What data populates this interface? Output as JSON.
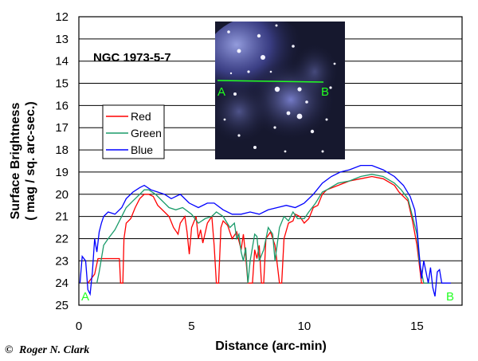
{
  "chart_data": {
    "type": "line",
    "object_label": "NGC 1973-5-7",
    "xlabel": "Distance (arc-min)",
    "ylabel_line1": "Surface Brightness",
    "ylabel_line2": "( mag / sq. arc-sec.)",
    "xlim": [
      0,
      17
    ],
    "ylim": [
      12,
      25
    ],
    "y_inverted": true,
    "xticks": [
      0,
      5,
      10,
      15
    ],
    "yticks": [
      12,
      13,
      14,
      15,
      16,
      17,
      18,
      19,
      20,
      21,
      22,
      23,
      24,
      25
    ],
    "grid": {
      "horizontal": true,
      "vertical": false
    },
    "legend_placement": "left, middle",
    "point_a_label": "A",
    "point_b_label": "B",
    "credit": "Roger N. Clark",
    "copyright_symbol": "©",
    "series": [
      {
        "name": "Red",
        "color": "#ff0000",
        "points": [
          [
            0.4,
            24.0
          ],
          [
            0.7,
            23.6
          ],
          [
            0.85,
            22.9
          ],
          [
            1.0,
            22.9
          ],
          [
            1.2,
            22.9
          ],
          [
            1.5,
            22.9
          ],
          [
            1.8,
            22.9
          ],
          [
            1.85,
            24.0
          ],
          [
            1.95,
            24.0
          ],
          [
            2.0,
            22.0
          ],
          [
            2.1,
            21.3
          ],
          [
            2.3,
            21.1
          ],
          [
            2.5,
            20.6
          ],
          [
            2.7,
            20.2
          ],
          [
            2.9,
            20.0
          ],
          [
            3.1,
            20.0
          ],
          [
            3.3,
            20.1
          ],
          [
            3.5,
            20.5
          ],
          [
            3.8,
            20.8
          ],
          [
            4.0,
            21.0
          ],
          [
            4.2,
            21.5
          ],
          [
            4.4,
            21.8
          ],
          [
            4.5,
            21.3
          ],
          [
            4.7,
            21.0
          ],
          [
            4.8,
            21.7
          ],
          [
            4.9,
            22.7
          ],
          [
            5.0,
            21.5
          ],
          [
            5.2,
            21.0
          ],
          [
            5.3,
            22.0
          ],
          [
            5.4,
            21.6
          ],
          [
            5.5,
            22.2
          ],
          [
            5.7,
            21.3
          ],
          [
            5.9,
            21.0
          ],
          [
            6.0,
            22.3
          ],
          [
            6.1,
            24.0
          ],
          [
            6.2,
            24.0
          ],
          [
            6.3,
            21.5
          ],
          [
            6.4,
            21.2
          ],
          [
            6.6,
            21.4
          ],
          [
            6.8,
            22.0
          ],
          [
            7.0,
            21.7
          ],
          [
            7.2,
            22.5
          ],
          [
            7.3,
            21.8
          ],
          [
            7.4,
            22.8
          ],
          [
            7.5,
            24.0
          ],
          [
            7.7,
            24.0
          ],
          [
            7.8,
            22.5
          ],
          [
            7.9,
            22.9
          ],
          [
            8.0,
            22.3
          ],
          [
            8.1,
            24.0
          ],
          [
            8.2,
            24.0
          ],
          [
            8.3,
            22.0
          ],
          [
            8.5,
            21.7
          ],
          [
            8.7,
            22.3
          ],
          [
            8.9,
            24.0
          ],
          [
            9.0,
            24.0
          ],
          [
            9.1,
            22.0
          ],
          [
            9.3,
            21.3
          ],
          [
            9.5,
            21.2
          ],
          [
            9.6,
            20.9
          ],
          [
            9.8,
            21.0
          ],
          [
            10.0,
            21.3
          ],
          [
            10.2,
            21.1
          ],
          [
            10.4,
            20.6
          ],
          [
            10.6,
            20.5
          ],
          [
            10.8,
            20.0
          ],
          [
            11.0,
            19.8
          ],
          [
            11.5,
            19.6
          ],
          [
            12.0,
            19.4
          ],
          [
            12.5,
            19.3
          ],
          [
            13.0,
            19.2
          ],
          [
            13.5,
            19.3
          ],
          [
            14.0,
            19.6
          ],
          [
            14.2,
            19.9
          ],
          [
            14.4,
            20.1
          ],
          [
            14.6,
            20.3
          ],
          [
            14.8,
            21.2
          ],
          [
            15.0,
            22.3
          ],
          [
            15.2,
            24.0
          ],
          [
            15.5,
            24.0
          ]
        ]
      },
      {
        "name": "Green",
        "color": "#1a9b6a",
        "points": [
          [
            0.8,
            24.0
          ],
          [
            0.9,
            23.5
          ],
          [
            1.0,
            22.9
          ],
          [
            1.1,
            22.3
          ],
          [
            1.3,
            22.0
          ],
          [
            1.6,
            21.6
          ],
          [
            1.9,
            21.0
          ],
          [
            2.1,
            20.6
          ],
          [
            2.4,
            20.3
          ],
          [
            2.7,
            20.0
          ],
          [
            2.9,
            19.8
          ],
          [
            3.1,
            19.8
          ],
          [
            3.4,
            20.0
          ],
          [
            3.7,
            20.3
          ],
          [
            4.0,
            20.6
          ],
          [
            4.3,
            20.7
          ],
          [
            4.6,
            20.6
          ],
          [
            5.0,
            20.9
          ],
          [
            5.3,
            21.3
          ],
          [
            5.6,
            21.1
          ],
          [
            5.9,
            21.0
          ],
          [
            6.1,
            20.8
          ],
          [
            6.4,
            21.0
          ],
          [
            6.7,
            21.5
          ],
          [
            6.9,
            21.3
          ],
          [
            7.0,
            22.0
          ],
          [
            7.1,
            21.8
          ],
          [
            7.2,
            22.6
          ],
          [
            7.3,
            23.0
          ],
          [
            7.4,
            22.4
          ],
          [
            7.5,
            24.0
          ],
          [
            7.6,
            23.0
          ],
          [
            7.8,
            21.8
          ],
          [
            7.9,
            21.9
          ],
          [
            8.0,
            23.0
          ],
          [
            8.2,
            22.5
          ],
          [
            8.4,
            21.5
          ],
          [
            8.6,
            21.8
          ],
          [
            8.7,
            23.0
          ],
          [
            8.9,
            21.5
          ],
          [
            9.1,
            21.0
          ],
          [
            9.3,
            21.2
          ],
          [
            9.5,
            20.8
          ],
          [
            9.7,
            21.1
          ],
          [
            10.0,
            21.1
          ],
          [
            10.2,
            20.8
          ],
          [
            10.5,
            20.4
          ],
          [
            10.8,
            19.9
          ],
          [
            11.0,
            19.8
          ],
          [
            11.5,
            19.5
          ],
          [
            12.0,
            19.4
          ],
          [
            12.5,
            19.2
          ],
          [
            13.0,
            19.1
          ],
          [
            13.5,
            19.2
          ],
          [
            14.0,
            19.5
          ],
          [
            14.3,
            19.8
          ],
          [
            14.6,
            20.2
          ],
          [
            14.8,
            21.0
          ],
          [
            15.0,
            21.8
          ],
          [
            15.1,
            23.0
          ],
          [
            15.3,
            24.0
          ],
          [
            15.6,
            24.0
          ]
        ]
      },
      {
        "name": "Blue",
        "color": "#0000ff",
        "points": [
          [
            0.05,
            24.0
          ],
          [
            0.15,
            22.8
          ],
          [
            0.3,
            23.0
          ],
          [
            0.4,
            24.3
          ],
          [
            0.5,
            24.5
          ],
          [
            0.6,
            23.5
          ],
          [
            0.7,
            22.0
          ],
          [
            0.8,
            22.6
          ],
          [
            0.9,
            21.7
          ],
          [
            1.0,
            21.3
          ],
          [
            1.1,
            21.0
          ],
          [
            1.3,
            20.8
          ],
          [
            1.6,
            20.9
          ],
          [
            1.9,
            20.6
          ],
          [
            2.1,
            20.2
          ],
          [
            2.4,
            19.9
          ],
          [
            2.7,
            19.7
          ],
          [
            2.9,
            19.6
          ],
          [
            3.2,
            19.8
          ],
          [
            3.5,
            19.9
          ],
          [
            3.8,
            20.0
          ],
          [
            4.1,
            20.2
          ],
          [
            4.5,
            20.0
          ],
          [
            4.9,
            20.4
          ],
          [
            5.3,
            20.6
          ],
          [
            5.7,
            20.4
          ],
          [
            6.0,
            20.4
          ],
          [
            6.4,
            20.7
          ],
          [
            6.8,
            20.9
          ],
          [
            7.2,
            20.9
          ],
          [
            7.6,
            20.8
          ],
          [
            8.0,
            20.9
          ],
          [
            8.4,
            20.7
          ],
          [
            8.8,
            20.6
          ],
          [
            9.2,
            20.5
          ],
          [
            9.6,
            20.6
          ],
          [
            10.0,
            20.4
          ],
          [
            10.4,
            20.0
          ],
          [
            10.8,
            19.5
          ],
          [
            11.2,
            19.2
          ],
          [
            11.6,
            19.0
          ],
          [
            12.0,
            18.9
          ],
          [
            12.5,
            18.7
          ],
          [
            13.0,
            18.7
          ],
          [
            13.5,
            18.9
          ],
          [
            14.0,
            19.2
          ],
          [
            14.4,
            19.6
          ],
          [
            14.7,
            20.1
          ],
          [
            14.9,
            20.7
          ],
          [
            15.0,
            21.5
          ],
          [
            15.1,
            22.7
          ],
          [
            15.2,
            23.8
          ],
          [
            15.3,
            23.0
          ],
          [
            15.5,
            24.0
          ],
          [
            15.6,
            23.3
          ],
          [
            15.7,
            24.2
          ],
          [
            15.8,
            24.6
          ],
          [
            15.9,
            23.5
          ],
          [
            16.0,
            23.4
          ],
          [
            16.1,
            24.0
          ],
          [
            16.5,
            24.0
          ]
        ]
      }
    ]
  }
}
